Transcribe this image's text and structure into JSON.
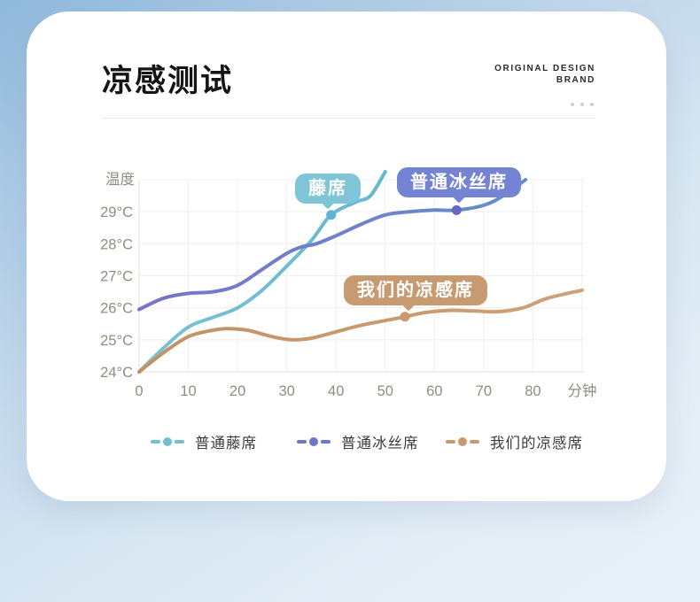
{
  "header": {
    "title": "凉感测试",
    "brand_line1": "ORIGINAL DESIGN",
    "brand_line2": "BRAND"
  },
  "colors": {
    "card_bg": "#ffffff",
    "grid": "#f0efeb",
    "axis": "#e3e0d8",
    "tick_text": "#8f8d80"
  },
  "chart_data": {
    "type": "line",
    "title": "凉感测试",
    "xlabel": "分钟",
    "ylabel": "温度",
    "xlim": [
      0,
      90
    ],
    "ylim": [
      24,
      30
    ],
    "grid": true,
    "x_ticks": [
      0,
      10,
      20,
      30,
      40,
      50,
      60,
      70,
      80
    ],
    "y_ticks": [
      {
        "v": 24,
        "label": "24°C"
      },
      {
        "v": 25,
        "label": "25°C"
      },
      {
        "v": 26,
        "label": "26°C"
      },
      {
        "v": 27,
        "label": "27°C"
      },
      {
        "v": 28,
        "label": "28°C"
      },
      {
        "v": 29,
        "label": "29°C"
      }
    ],
    "legend": {
      "position": "bottom"
    },
    "series": [
      {
        "name": "普通藤席",
        "legend_color": "#74bed1",
        "color_start": "#7cc3d4",
        "color_end": "#52aecd",
        "marker": [
          39,
          28.9
        ],
        "marker_color": "#5fb3cf",
        "points": [
          [
            0,
            24
          ],
          [
            5,
            24.75
          ],
          [
            10,
            25.4
          ],
          [
            15,
            25.7
          ],
          [
            20,
            26.0
          ],
          [
            25,
            26.55
          ],
          [
            30,
            27.3
          ],
          [
            35,
            28.1
          ],
          [
            39,
            28.9
          ],
          [
            44,
            29.3
          ],
          [
            47,
            29.5
          ],
          [
            50,
            30.25
          ]
        ]
      },
      {
        "name": "普通冰丝席",
        "legend_color": "#6b77c8",
        "color_start": "#7a73c9",
        "color_end": "#5f93cb",
        "marker": [
          64.5,
          29.05
        ],
        "marker_color": "#6468c3",
        "points": [
          [
            0,
            25.95
          ],
          [
            5,
            26.3
          ],
          [
            10,
            26.45
          ],
          [
            15,
            26.5
          ],
          [
            20,
            26.7
          ],
          [
            25,
            27.2
          ],
          [
            30,
            27.7
          ],
          [
            33,
            27.9
          ],
          [
            36,
            28.0
          ],
          [
            40,
            28.25
          ],
          [
            45,
            28.6
          ],
          [
            50,
            28.9
          ],
          [
            55,
            29.0
          ],
          [
            60,
            29.05
          ],
          [
            64.5,
            29.05
          ],
          [
            70,
            29.2
          ],
          [
            74,
            29.5
          ],
          [
            78.5,
            30.0
          ]
        ]
      },
      {
        "name": "我们的凉感席",
        "legend_color": "#c8996e",
        "color_start": "#c29165",
        "color_end": "#cfa176",
        "marker": [
          54,
          25.72
        ],
        "marker_color": "#c89a6e",
        "points": [
          [
            0,
            24
          ],
          [
            5,
            24.6
          ],
          [
            10,
            25.1
          ],
          [
            15,
            25.3
          ],
          [
            18,
            25.35
          ],
          [
            22,
            25.3
          ],
          [
            27,
            25.1
          ],
          [
            31,
            25.0
          ],
          [
            35,
            25.05
          ],
          [
            40,
            25.25
          ],
          [
            45,
            25.45
          ],
          [
            50,
            25.6
          ],
          [
            54,
            25.72
          ],
          [
            58,
            25.85
          ],
          [
            63,
            25.92
          ],
          [
            68,
            25.9
          ],
          [
            73,
            25.88
          ],
          [
            78,
            26.0
          ],
          [
            83,
            26.3
          ],
          [
            90,
            26.55
          ]
        ]
      }
    ],
    "annotations": [
      {
        "label": "藤席",
        "color": "#7fc5d7",
        "text_color": "#ffffff"
      },
      {
        "label": "普通冰丝席",
        "color": "#7584d2",
        "text_color": "#ffffff"
      },
      {
        "label": "我们的凉感席",
        "color": "#c79b71",
        "text_color": "#ffffff"
      }
    ]
  }
}
